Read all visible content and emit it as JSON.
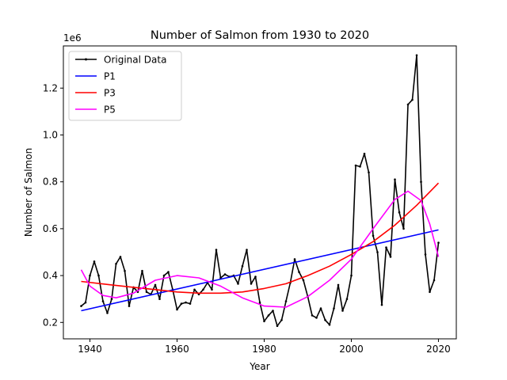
{
  "chart_data": {
    "type": "line",
    "title": "Number of Salmon from 1930 to 2020",
    "xlabel": "Year",
    "ylabel": "Number of Salmon",
    "offset_text": "1e6",
    "xlim": [
      1933.9,
      2024.1
    ],
    "ylim": [
      0.13,
      1.38
    ],
    "x_ticks": [
      1940,
      1960,
      1980,
      2000,
      2020
    ],
    "y_ticks": [
      0.2,
      0.4,
      0.6,
      0.8,
      1.0,
      1.2
    ],
    "y_tick_labels": [
      "0.2",
      "0.4",
      "0.6",
      "0.8",
      "1.0",
      "1.2"
    ],
    "legend_position": "top-left",
    "series": [
      {
        "name": "Original Data",
        "color": "#000000",
        "x": [
          1938,
          1939,
          1940,
          1941,
          1942,
          1943,
          1944,
          1945,
          1946,
          1947,
          1948,
          1949,
          1950,
          1951,
          1952,
          1953,
          1954,
          1955,
          1956,
          1957,
          1958,
          1959,
          1960,
          1961,
          1962,
          1963,
          1964,
          1965,
          1966,
          1967,
          1968,
          1969,
          1970,
          1971,
          1972,
          1973,
          1974,
          1975,
          1976,
          1977,
          1978,
          1979,
          1980,
          1981,
          1982,
          1983,
          1984,
          1985,
          1986,
          1987,
          1988,
          1989,
          1990,
          1991,
          1992,
          1993,
          1994,
          1995,
          1996,
          1997,
          1998,
          1999,
          2000,
          2001,
          2002,
          2003,
          2004,
          2005,
          2006,
          2007,
          2008,
          2009,
          2010,
          2011,
          2012,
          2013,
          2014,
          2015,
          2016,
          2017,
          2018,
          2019,
          2020
        ],
        "values": [
          0.27,
          0.285,
          0.4,
          0.46,
          0.4,
          0.29,
          0.24,
          0.3,
          0.45,
          0.48,
          0.42,
          0.27,
          0.35,
          0.33,
          0.42,
          0.33,
          0.32,
          0.36,
          0.3,
          0.4,
          0.415,
          0.34,
          0.255,
          0.28,
          0.285,
          0.28,
          0.34,
          0.32,
          0.34,
          0.37,
          0.34,
          0.51,
          0.39,
          0.405,
          0.395,
          0.4,
          0.365,
          0.44,
          0.51,
          0.365,
          0.395,
          0.285,
          0.205,
          0.23,
          0.25,
          0.185,
          0.21,
          0.29,
          0.37,
          0.47,
          0.415,
          0.38,
          0.31,
          0.23,
          0.22,
          0.26,
          0.21,
          0.19,
          0.26,
          0.36,
          0.25,
          0.3,
          0.4,
          0.87,
          0.865,
          0.92,
          0.84,
          0.57,
          0.5,
          0.275,
          0.52,
          0.48,
          0.81,
          0.67,
          0.6,
          1.13,
          1.15,
          1.34,
          0.8,
          0.49,
          0.33,
          0.38,
          0.54
        ]
      },
      {
        "name": "P1",
        "color": "#0000ff",
        "x": [
          1938,
          2020
        ],
        "values": [
          0.25,
          0.595
        ]
      },
      {
        "name": "P3",
        "color": "#ff0000",
        "x": [
          1938,
          1945,
          1950,
          1955,
          1960,
          1965,
          1970,
          1975,
          1980,
          1985,
          1990,
          1995,
          2000,
          2005,
          2010,
          2015,
          2020
        ],
        "values": [
          0.375,
          0.36,
          0.35,
          0.34,
          0.33,
          0.325,
          0.325,
          0.33,
          0.345,
          0.365,
          0.4,
          0.44,
          0.49,
          0.545,
          0.615,
          0.7,
          0.795
        ]
      },
      {
        "name": "P5",
        "color": "#ff00ff",
        "x": [
          1938,
          1940,
          1943,
          1946,
          1950,
          1955,
          1960,
          1965,
          1970,
          1975,
          1980,
          1985,
          1990,
          1995,
          2000,
          2005,
          2010,
          2013,
          2016,
          2018,
          2020
        ],
        "values": [
          0.425,
          0.355,
          0.315,
          0.305,
          0.325,
          0.38,
          0.4,
          0.39,
          0.355,
          0.305,
          0.27,
          0.265,
          0.31,
          0.38,
          0.47,
          0.6,
          0.725,
          0.76,
          0.72,
          0.62,
          0.48
        ]
      }
    ]
  }
}
